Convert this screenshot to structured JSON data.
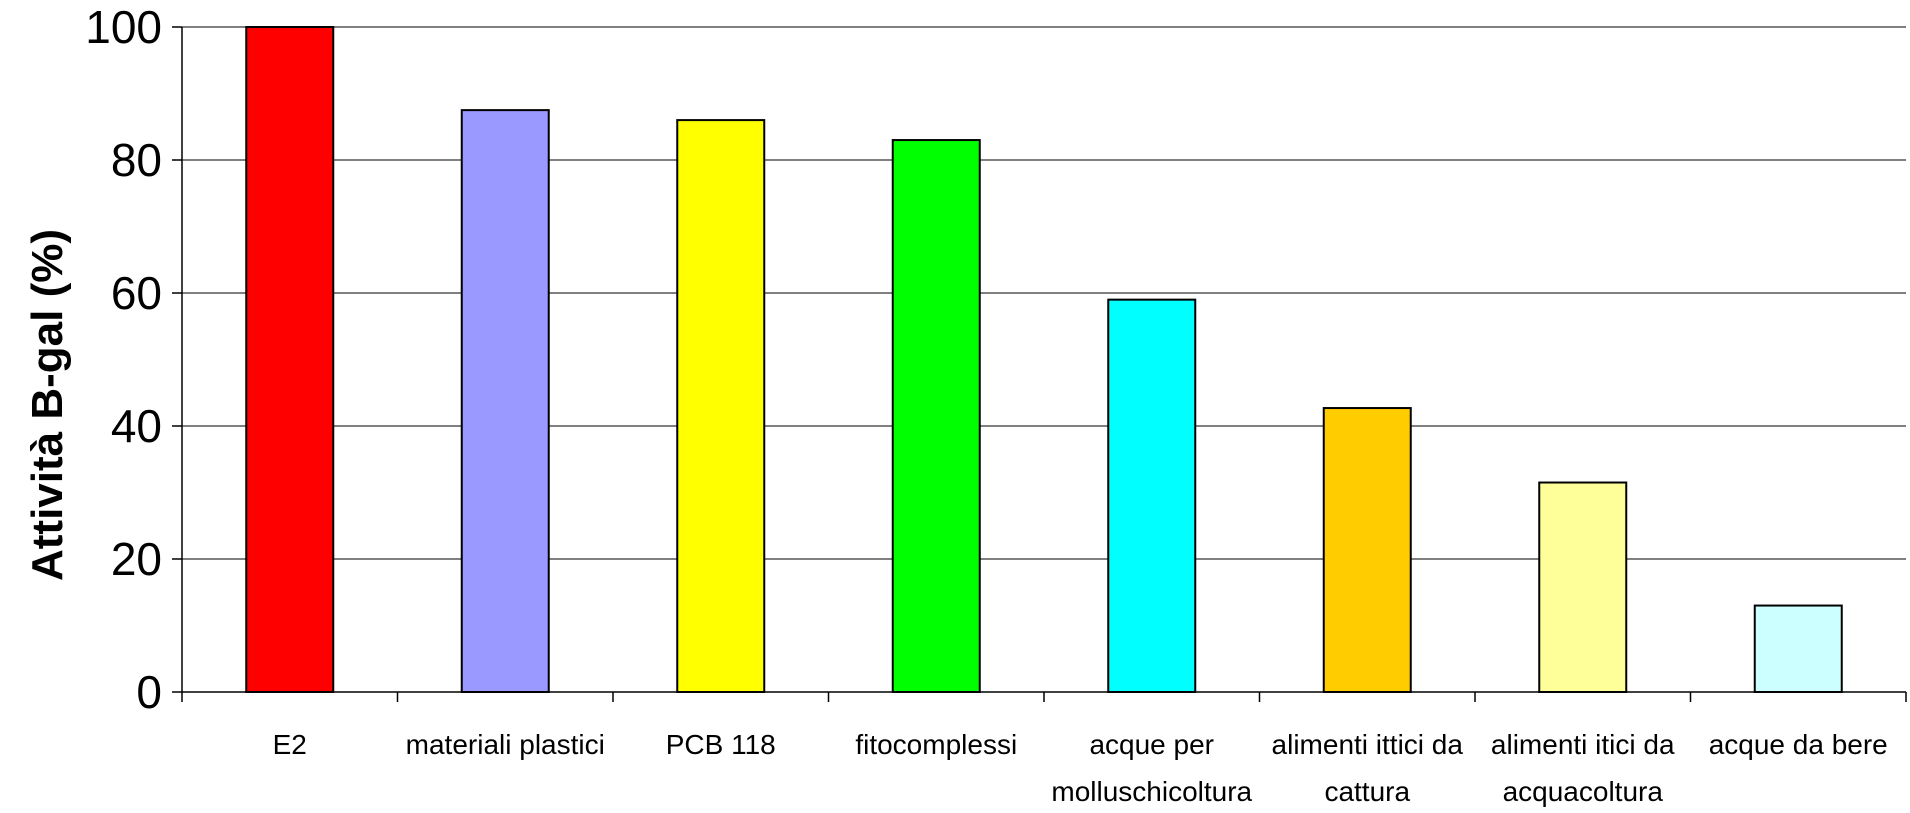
{
  "chart_data": {
    "type": "bar",
    "ylabel": "Attività B-gal (%)",
    "xlabel": "",
    "ylim": [
      0,
      100
    ],
    "yticks": [
      0,
      20,
      40,
      60,
      80,
      100
    ],
    "yticks_labels": [
      "0",
      "20",
      "40",
      "60",
      "80",
      "100"
    ],
    "grid": true,
    "categories": [
      [
        "E2"
      ],
      [
        "materiali plastici"
      ],
      [
        "PCB 118"
      ],
      [
        "fitocomplessi"
      ],
      [
        "acque per",
        "molluschicoltura"
      ],
      [
        "alimenti ittici da",
        "cattura"
      ],
      [
        "alimenti itici da",
        "acquacoltura"
      ],
      [
        "acque da bere"
      ]
    ],
    "values": [
      100,
      87.5,
      86,
      83,
      59,
      42.7,
      31.5,
      13
    ],
    "colors": [
      "#ff0000",
      "#9999ff",
      "#ffff00",
      "#00ff00",
      "#00ffff",
      "#ffcc00",
      "#ffff99",
      "#ccffff"
    ]
  }
}
